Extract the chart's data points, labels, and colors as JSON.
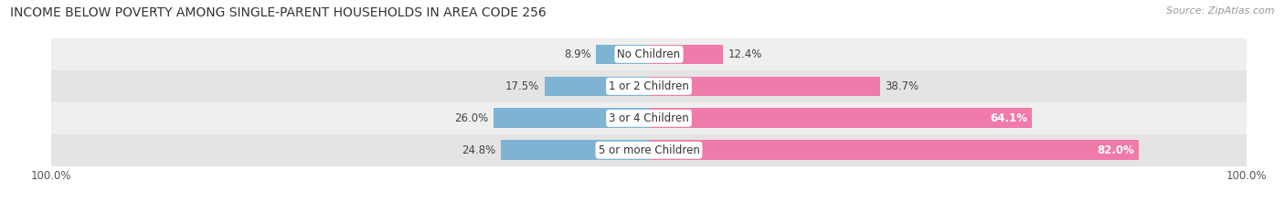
{
  "title": "INCOME BELOW POVERTY AMONG SINGLE-PARENT HOUSEHOLDS IN AREA CODE 256",
  "source": "Source: ZipAtlas.com",
  "categories": [
    "No Children",
    "1 or 2 Children",
    "3 or 4 Children",
    "5 or more Children"
  ],
  "father_values": [
    8.9,
    17.5,
    26.0,
    24.8
  ],
  "mother_values": [
    12.4,
    38.7,
    64.1,
    82.0
  ],
  "father_color": "#7fb3d3",
  "mother_color": "#f07aaa",
  "row_bg_colors": [
    "#efefef",
    "#e4e4e4"
  ],
  "axis_max": 100.0,
  "title_fontsize": 10,
  "label_fontsize": 8.5,
  "tick_fontsize": 8.5,
  "source_fontsize": 8
}
